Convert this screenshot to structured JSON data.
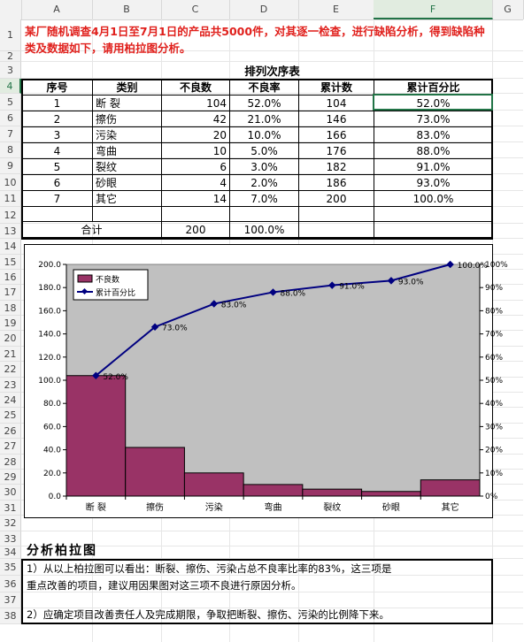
{
  "columns": [
    "A",
    "B",
    "C",
    "D",
    "E",
    "F",
    "G"
  ],
  "rows": [
    "1",
    "2",
    "3",
    "4",
    "5",
    "6",
    "7",
    "8",
    "9",
    "10",
    "11",
    "12",
    "13",
    "14",
    "15",
    "16",
    "17",
    "18",
    "19",
    "20",
    "21",
    "22",
    "23",
    "24",
    "25",
    "26",
    "27",
    "28",
    "29",
    "30",
    "31",
    "32",
    "33",
    "34",
    "35",
    "36",
    "37",
    "38"
  ],
  "intro_text": "某厂随机调查4月1日至7月1日的产品共5000件，对其逐一检查，进行缺陷分析，得到缺陷种类及数据如下，请用柏拉图分析。",
  "table_title": "排列次序表",
  "table": {
    "headers": [
      "序号",
      "类别",
      "不良数",
      "不良率",
      "累计数",
      "累计百分比"
    ],
    "rows": [
      [
        "1",
        "断 裂",
        "104",
        "52.0%",
        "104",
        "52.0%"
      ],
      [
        "2",
        "擦伤",
        "42",
        "21.0%",
        "146",
        "73.0%"
      ],
      [
        "3",
        "污染",
        "20",
        "10.0%",
        "166",
        "83.0%"
      ],
      [
        "4",
        "弯曲",
        "10",
        "5.0%",
        "176",
        "88.0%"
      ],
      [
        "5",
        "裂纹",
        "6",
        "3.0%",
        "182",
        "91.0%"
      ],
      [
        "6",
        "砂眼",
        "4",
        "2.0%",
        "186",
        "93.0%"
      ],
      [
        "7",
        "其它",
        "14",
        "7.0%",
        "200",
        "100.0%"
      ]
    ],
    "total_label": "合计",
    "total_count": "200",
    "total_rate": "100.0%"
  },
  "chart_data": {
    "type": "bar",
    "categories": [
      "断 裂",
      "擦伤",
      "污染",
      "弯曲",
      "裂纹",
      "砂眼",
      "其它"
    ],
    "series": [
      {
        "name": "不良数",
        "type": "bar",
        "values": [
          104,
          42,
          20,
          10,
          6,
          4,
          14
        ]
      },
      {
        "name": "累计百分比",
        "type": "line",
        "values": [
          52,
          73,
          83,
          88,
          91,
          93,
          100
        ]
      }
    ],
    "point_labels": [
      "52.0%",
      "73.0%",
      "83.0%",
      "88.0%",
      "91.0%",
      "93.0%",
      "100.0%"
    ],
    "y_left": {
      "min": 0,
      "max": 200,
      "step": 20,
      "ticks": [
        "0.0",
        "20.0",
        "40.0",
        "60.0",
        "80.0",
        "100.0",
        "120.0",
        "140.0",
        "160.0",
        "180.0",
        "200.0"
      ]
    },
    "y_right": {
      "min": 0,
      "max": 100,
      "step": 10,
      "ticks": [
        "0%",
        "10%",
        "20%",
        "30%",
        "40%",
        "50%",
        "60%",
        "70%",
        "80%",
        "90%",
        "100%"
      ]
    },
    "legend_position": "top-left",
    "plot_background": "#c0c0c0",
    "bar_color": "#993366",
    "line_color": "#000080"
  },
  "section_title": "分析柏拉图",
  "analysis": {
    "line1": "1）从以上柏拉图可以看出：断裂、擦伤、污染占总不良率比率的83%，这三项是",
    "line2": "   重点改善的项目，建议用因果图对这三项不良进行原因分析。",
    "line3": "2）应确定项目改善责任人及完成期限，争取把断裂、擦伤、污染的比例降下来。"
  }
}
